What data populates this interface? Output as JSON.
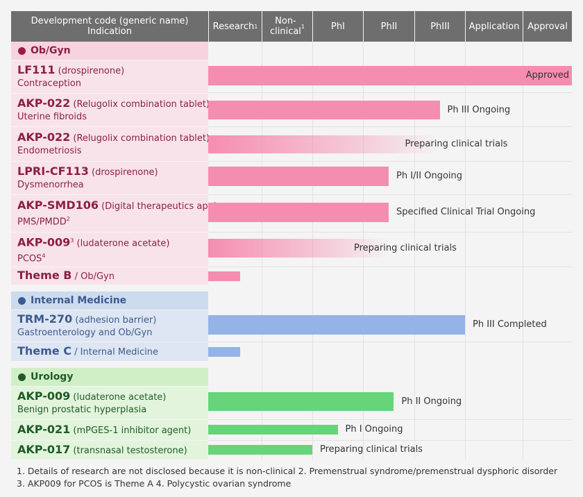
{
  "header": {
    "col_dev_line1": "Development code (generic name)",
    "col_dev_line2": "Indication",
    "stages": [
      {
        "label": "Research",
        "sup": "1"
      },
      {
        "label": "Non-\nclinical",
        "sup": "1"
      },
      {
        "label": "PhI",
        "sup": ""
      },
      {
        "label": "PhII",
        "sup": ""
      },
      {
        "label": "PhIII",
        "sup": ""
      },
      {
        "label": "Application",
        "sup": ""
      },
      {
        "label": "Approval",
        "sup": ""
      }
    ]
  },
  "categories": {
    "obgyn": {
      "label": "Ob/Gyn",
      "color": "#9b1b48"
    },
    "internal": {
      "label": "Internal Medicine",
      "color": "#3d5a91"
    },
    "urology": {
      "label": "Urology",
      "color": "#1f5a26"
    }
  },
  "colors": {
    "pink_bg": "#f9e3ea",
    "pink_cat": "#f7d3df",
    "pink_bar": "#f58db0",
    "blue_bg": "#dde6f2",
    "blue_cat": "#cddbee",
    "blue_bar": "#94b3e6",
    "green_bg": "#e2f5dc",
    "green_cat": "#d0efc7",
    "green_bar": "#67d47a",
    "header_bg": "#6e6e6e"
  },
  "chart_data": {
    "type": "table",
    "stages": [
      "Research",
      "Non-clinical",
      "PhI",
      "PhII",
      "PhIII",
      "Application",
      "Approval"
    ],
    "rows": [
      {
        "category": "Ob/Gyn",
        "code": "LF111",
        "code_sup": "",
        "generic": "(drospirenone)",
        "indication": "Contraception",
        "indication_sup": "",
        "progress_stage": 7.0,
        "status": "Approved",
        "style": "solid"
      },
      {
        "category": "Ob/Gyn",
        "code": "AKP-022",
        "code_sup": "",
        "generic": "(Relugolix combination tablet)",
        "indication": "Uterine fibroids",
        "indication_sup": "",
        "progress_stage": 4.5,
        "status": "Ph III Ongoing",
        "style": "solid"
      },
      {
        "category": "Ob/Gyn",
        "code": "AKP-022",
        "code_sup": "",
        "generic": "(Relugolix combination tablet)",
        "indication": "Endometriosis",
        "indication_sup": "",
        "progress_stage": 4.5,
        "status": "Preparing clinical trials",
        "style": "fade"
      },
      {
        "category": "Ob/Gyn",
        "code": "LPRI-CF113",
        "code_sup": "",
        "generic": "(drospirenone)",
        "indication": "Dysmenorrhea",
        "indication_sup": "",
        "progress_stage": 3.5,
        "status": "Ph I/II Ongoing",
        "style": "solid"
      },
      {
        "category": "Ob/Gyn",
        "code": "AKP-SMD106",
        "code_sup": "",
        "generic": "(Digital therapeutics app)",
        "indication": "PMS/PMDD",
        "indication_sup": "2",
        "progress_stage": 3.5,
        "status": "Specified Clinical Trial Ongoing",
        "style": "solid"
      },
      {
        "category": "Ob/Gyn",
        "code": "AKP-009",
        "code_sup": "3",
        "generic": "(ludaterone acetate)",
        "indication": "PCOS",
        "indication_sup": "4",
        "progress_stage": 3.5,
        "status": "Preparing clinical trials",
        "style": "fade"
      },
      {
        "category": "Ob/Gyn",
        "code": "Theme B",
        "code_sup": "",
        "generic": "/ Ob/Gyn",
        "indication": "",
        "indication_sup": "",
        "progress_stage": 0.6,
        "status": "",
        "style": "solid"
      },
      {
        "category": "Internal Medicine",
        "code": "TRM-270",
        "code_sup": "",
        "generic": "(adhesion barrier)",
        "indication": "Gastroenterology and Ob/Gyn",
        "indication_sup": "",
        "progress_stage": 5.0,
        "status": "Ph III Completed",
        "style": "solid"
      },
      {
        "category": "Internal Medicine",
        "code": "Theme C",
        "code_sup": "",
        "generic": "/ Internal Medicine",
        "indication": "",
        "indication_sup": "",
        "progress_stage": 0.6,
        "status": "",
        "style": "solid"
      },
      {
        "category": "Urology",
        "code": "AKP-009",
        "code_sup": "",
        "generic": "(ludaterone acetate)",
        "indication": "Benign prostatic hyperplasia",
        "indication_sup": "",
        "progress_stage": 3.6,
        "status": "Ph II Ongoing",
        "style": "solid"
      },
      {
        "category": "Urology",
        "code": "AKP-021",
        "code_sup": "",
        "generic": "(mPGES-1 inhibitor agent)",
        "indication": "",
        "indication_sup": "",
        "progress_stage": 2.5,
        "status": "Ph I Ongoing",
        "style": "solid"
      },
      {
        "category": "Urology",
        "code": "AKP-017",
        "code_sup": "",
        "generic": "(transnasal testosterone)",
        "indication": "",
        "indication_sup": "",
        "progress_stage": 2.0,
        "status": "Preparing clinical trials",
        "style": "solid"
      }
    ]
  },
  "footnotes": {
    "line1": "1. Details of research are not disclosed because it is non-clinical  2. Premenstrual syndrome/premenstrual dysphoric disorder",
    "line2": "3. AKP009 for PCOS is Theme A   4. Polycystic ovarian syndrome"
  }
}
